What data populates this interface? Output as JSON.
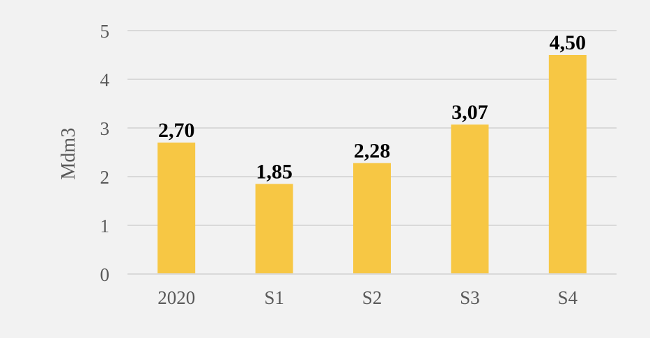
{
  "chart_data": {
    "type": "bar",
    "categories": [
      "2020",
      "S1",
      "S2",
      "S3",
      "S4"
    ],
    "values": [
      2.7,
      1.85,
      2.28,
      3.07,
      4.5
    ],
    "data_labels": [
      "2,70",
      "1,85",
      "2,28",
      "3,07",
      "4,50"
    ],
    "xlabel": "",
    "ylabel": "Mdm3",
    "ylim": [
      0,
      5
    ],
    "yticks": [
      0,
      1,
      2,
      3,
      4,
      5
    ],
    "grid": true,
    "bar_color": "#f7c744",
    "background": "#f2f2f2"
  }
}
